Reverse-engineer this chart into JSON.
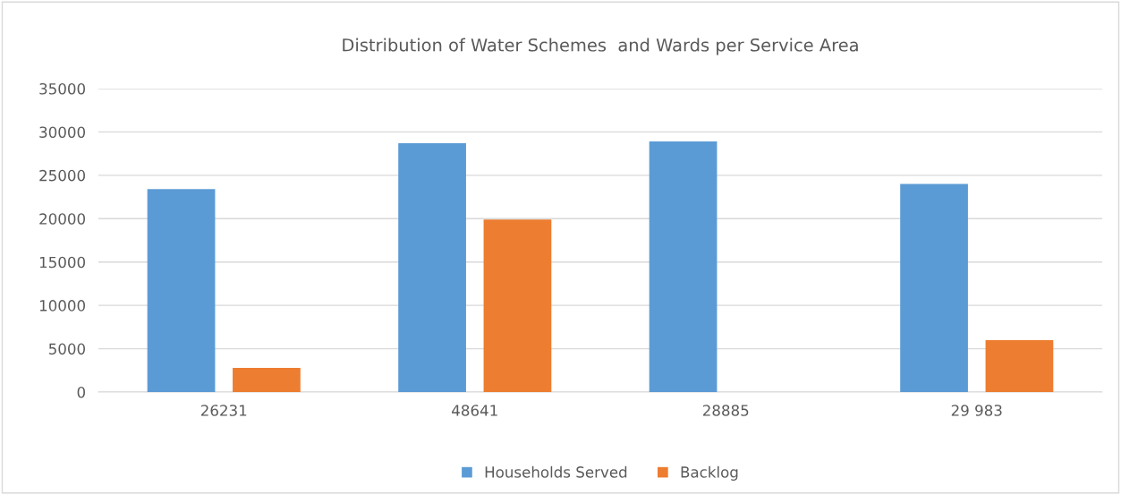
{
  "chart_data": {
    "type": "bar",
    "title": "Distribution of Water Schemes  and Wards per Service Area",
    "categories": [
      "26231",
      "48641",
      "28885",
      "29 983"
    ],
    "series": [
      {
        "name": "Households Served",
        "color": "#5b9bd5",
        "values": [
          23400,
          28700,
          28900,
          24000
        ]
      },
      {
        "name": "Backlog",
        "color": "#ed7d31",
        "values": [
          2800,
          19900,
          0,
          6000
        ]
      }
    ],
    "ylim": [
      0,
      35000
    ],
    "yticks": [
      0,
      5000,
      10000,
      15000,
      20000,
      25000,
      30000,
      35000
    ],
    "grid": "y",
    "legend": "bottom"
  }
}
